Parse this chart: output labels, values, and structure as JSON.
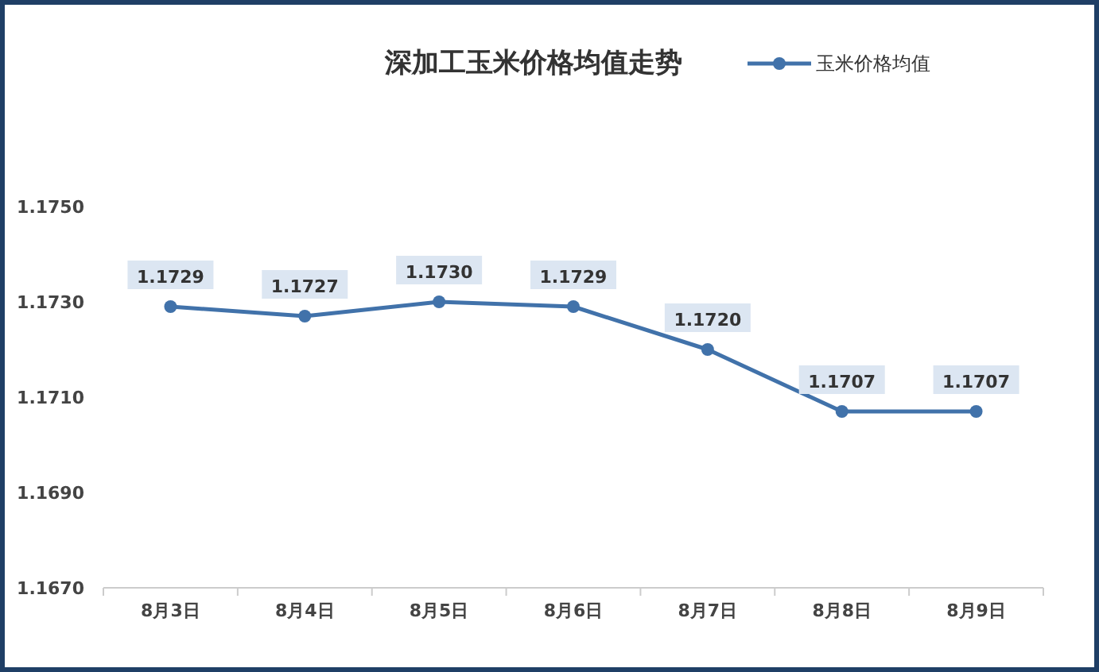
{
  "chart_data": {
    "type": "line",
    "title": "深加工玉米价格均值走势",
    "categories": [
      "8月3日",
      "8月4日",
      "8月5日",
      "8月6日",
      "8月7日",
      "8月8日",
      "8月9日"
    ],
    "series": [
      {
        "name": "玉米价格均值",
        "color": "#4172aa",
        "values": [
          1.1729,
          1.1727,
          1.173,
          1.1729,
          1.172,
          1.1707,
          1.1707
        ],
        "value_labels": [
          "1.1729",
          "1.1727",
          "1.1730",
          "1.1729",
          "1.1720",
          "1.1707",
          "1.1707"
        ]
      }
    ],
    "ylim": [
      1.167,
      1.175
    ],
    "yticks": [
      {
        "value": 1.167,
        "label": "1.1670"
      },
      {
        "value": 1.169,
        "label": "1.1690"
      },
      {
        "value": 1.171,
        "label": "1.1710"
      },
      {
        "value": 1.173,
        "label": "1.1730"
      },
      {
        "value": 1.175,
        "label": "1.1750"
      }
    ],
    "grid": false,
    "legend": "top right",
    "marker": "circle",
    "line_style": "solid"
  }
}
